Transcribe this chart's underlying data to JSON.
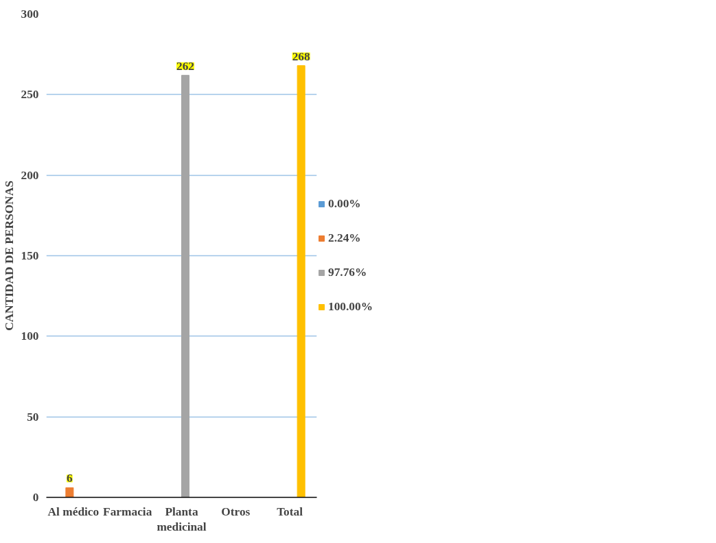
{
  "chart_data": {
    "type": "bar",
    "ylabel": "CANTIDAD DE PERSONAS",
    "categories": [
      "Al médico",
      "Farmacia",
      "Planta medicinal",
      "Otros",
      "Total"
    ],
    "series": [
      {
        "name": "0.00%",
        "color": "#5b9bd5",
        "values": [
          null,
          0,
          null,
          0,
          null
        ]
      },
      {
        "name": "2.24%",
        "color": "#ed7d31",
        "values": [
          6,
          null,
          null,
          null,
          null
        ],
        "value_labels": [
          "6",
          null,
          null,
          null,
          null
        ]
      },
      {
        "name": "97.76%",
        "color": "#a5a5a5",
        "values": [
          null,
          null,
          262,
          null,
          null
        ],
        "value_labels": [
          null,
          null,
          "262",
          null,
          null
        ]
      },
      {
        "name": "100.00%",
        "color": "#ffc000",
        "values": [
          null,
          null,
          null,
          null,
          268
        ],
        "value_labels": [
          null,
          null,
          null,
          null,
          "268"
        ]
      }
    ],
    "ylim": [
      0,
      300
    ],
    "yticks": [
      0,
      50,
      100,
      150,
      200,
      250,
      300
    ],
    "grid": "y",
    "legend": "right"
  }
}
